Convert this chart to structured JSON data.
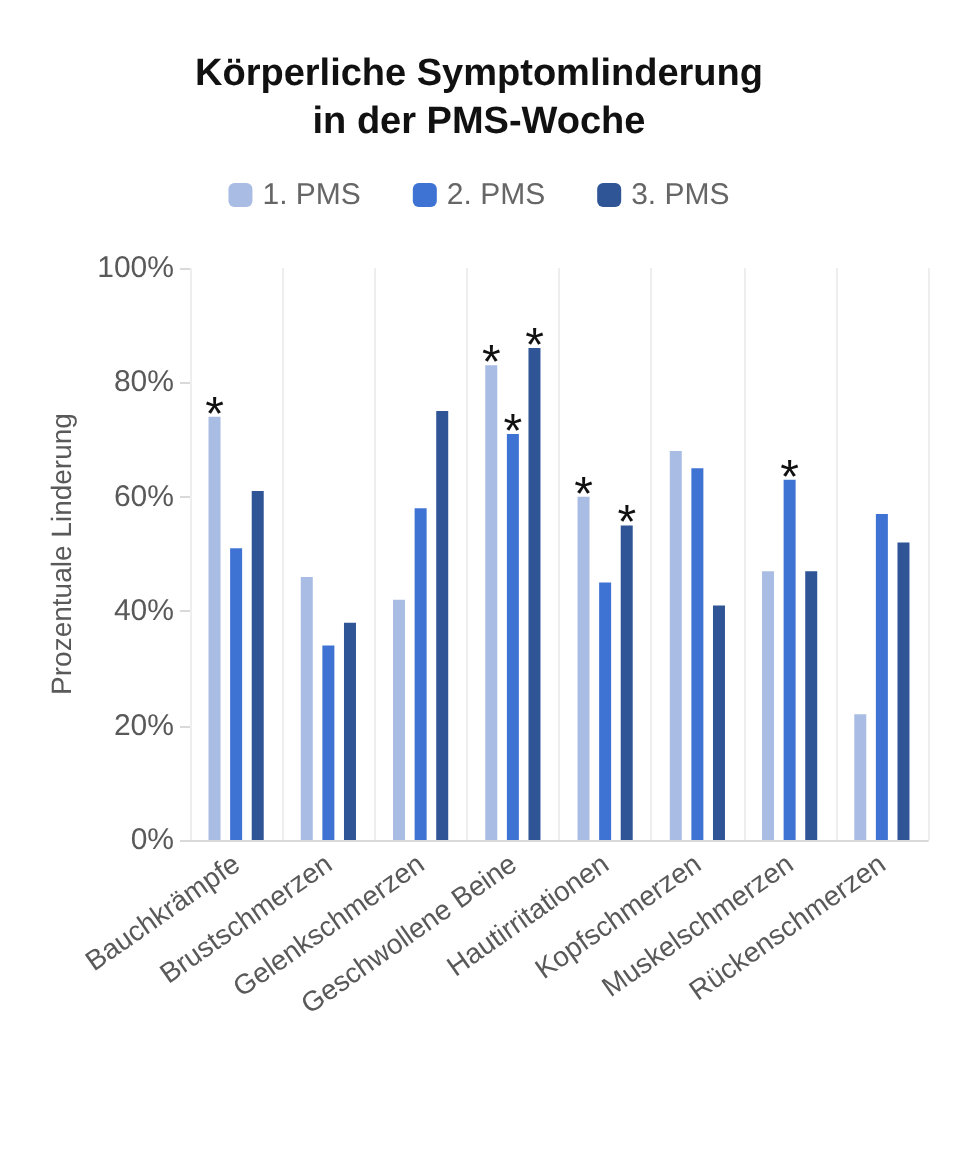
{
  "chart_data": {
    "type": "bar",
    "title": "Körperliche Symptomlinderung\nin der PMS-Woche",
    "ylabel": "Prozentuale Linderung",
    "categories": [
      "Bauchkrämpfe",
      "Brustschmerzen",
      "Gelenkschmerzen",
      "Geschwollene Beine",
      "Hautirritationen",
      "Kopfschmerzen",
      "Muskelschmerzen",
      "Rückenschmerzen"
    ],
    "series": [
      {
        "name": "1. PMS",
        "color": "#a9bce3",
        "values": [
          74,
          46,
          42,
          83,
          60,
          68,
          47,
          22
        ],
        "value_labels": [
          "*",
          null,
          null,
          "*",
          "*",
          null,
          null,
          null
        ]
      },
      {
        "name": "2. PMS",
        "color": "#3f73d3",
        "values": [
          51,
          34,
          58,
          71,
          45,
          65,
          63,
          57
        ],
        "value_labels": [
          null,
          null,
          null,
          "*",
          null,
          null,
          "*",
          null
        ]
      },
      {
        "name": "3. PMS",
        "color": "#2f5597",
        "values": [
          61,
          38,
          75,
          86,
          55,
          41,
          47,
          52
        ],
        "value_labels": [
          null,
          null,
          null,
          "*",
          "*",
          null,
          null,
          null
        ]
      }
    ],
    "ylim": [
      0,
      100
    ],
    "yticks": [
      {
        "value": 0,
        "label": "0%"
      },
      {
        "value": 20,
        "label": "20%"
      },
      {
        "value": 40,
        "label": "40%"
      },
      {
        "value": 60,
        "label": "60%"
      },
      {
        "value": 80,
        "label": "80%"
      },
      {
        "value": 100,
        "label": "100%"
      }
    ],
    "grid": "x",
    "legend": "top"
  }
}
